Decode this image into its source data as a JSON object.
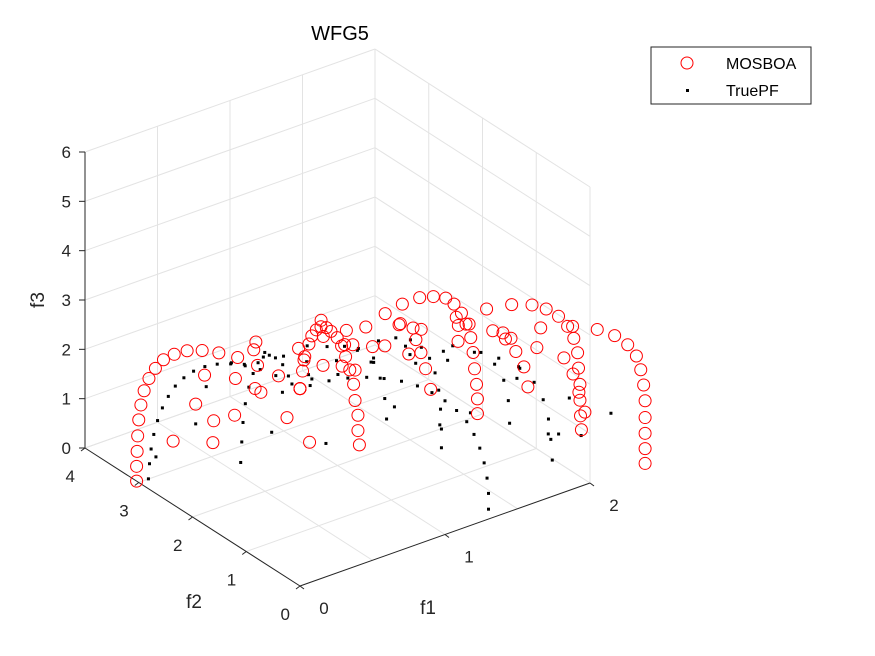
{
  "chart_data": {
    "type": "scatter3d",
    "title": "WFG5",
    "xlabel": "f1",
    "ylabel": "f2",
    "zlabel": "f3",
    "xlim": [
      0,
      2
    ],
    "ylim": [
      0,
      4
    ],
    "zlim": [
      0,
      6
    ],
    "xticks": [
      "0",
      "1",
      "2"
    ],
    "yticks": [
      "0",
      "1",
      "2",
      "3",
      "4"
    ],
    "zticks": [
      "0",
      "1",
      "2",
      "3",
      "4",
      "5",
      "6"
    ],
    "grid": true,
    "legend_location": "top-right",
    "series": [
      {
        "name": "MOSBOA",
        "marker": "open-circle",
        "color": "#ff0000",
        "points": [
          [
            0.0,
            0.0,
            4.0
          ],
          [
            0.14,
            0.33,
            3.98
          ],
          [
            0.27,
            0.64,
            3.92
          ],
          [
            0.41,
            0.94,
            3.82
          ],
          [
            0.53,
            1.21,
            3.67
          ],
          [
            0.65,
            1.45,
            3.5
          ],
          [
            0.76,
            1.66,
            3.3
          ],
          [
            0.86,
            1.83,
            3.06
          ],
          [
            0.94,
            1.96,
            2.81
          ],
          [
            1.02,
            2.06,
            2.53
          ],
          [
            1.08,
            2.14,
            2.24
          ],
          [
            1.13,
            2.2,
            1.93
          ],
          [
            1.17,
            2.23,
            1.6
          ],
          [
            1.2,
            2.24,
            1.27
          ],
          [
            1.21,
            2.24,
            0.93
          ],
          [
            1.23,
            2.24,
            0.61
          ],
          [
            1.23,
            2.24,
            0.3
          ],
          [
            1.24,
            2.24,
            0.0
          ],
          [
            0.0,
            0.0,
            4.0
          ],
          [
            0.27,
            0.3,
            3.98
          ],
          [
            0.53,
            0.6,
            3.92
          ],
          [
            0.78,
            0.88,
            3.82
          ],
          [
            1.01,
            1.14,
            3.67
          ],
          [
            1.21,
            1.36,
            3.5
          ],
          [
            1.4,
            1.55,
            3.3
          ],
          [
            1.55,
            1.7,
            3.06
          ],
          [
            1.68,
            1.82,
            2.81
          ],
          [
            1.77,
            1.91,
            2.53
          ],
          [
            1.84,
            1.96,
            2.24
          ],
          [
            1.89,
            2.01,
            1.93
          ],
          [
            1.93,
            2.03,
            1.6
          ],
          [
            1.95,
            2.04,
            1.27
          ],
          [
            1.96,
            2.04,
            0.93
          ],
          [
            1.97,
            2.03,
            0.61
          ],
          [
            1.98,
            2.04,
            0.3
          ],
          [
            1.98,
            2.04,
            0.0
          ],
          [
            0.0,
            0.0,
            4.0
          ],
          [
            0.35,
            0.16,
            3.98
          ],
          [
            0.7,
            0.31,
            3.92
          ],
          [
            1.01,
            0.47,
            3.82
          ],
          [
            1.3,
            0.6,
            3.67
          ],
          [
            1.55,
            0.71,
            3.5
          ],
          [
            1.76,
            0.81,
            3.3
          ],
          [
            1.93,
            0.89,
            3.06
          ],
          [
            2.05,
            0.95,
            2.81
          ],
          [
            2.15,
            0.99,
            2.53
          ],
          [
            2.22,
            1.01,
            2.24
          ],
          [
            2.27,
            1.03,
            1.93
          ],
          [
            2.3,
            1.04,
            1.6
          ],
          [
            2.31,
            1.05,
            1.27
          ],
          [
            2.32,
            1.05,
            0.93
          ],
          [
            2.32,
            1.05,
            0.61
          ],
          [
            2.32,
            1.04,
            0.3
          ],
          [
            2.33,
            1.05,
            0.0
          ],
          [
            0.0,
            0.0,
            4.0
          ],
          [
            0.38,
            0.0,
            3.98
          ],
          [
            0.75,
            0.0,
            3.92
          ],
          [
            1.09,
            0.0,
            3.82
          ],
          [
            1.4,
            0.0,
            3.67
          ],
          [
            1.66,
            0.0,
            3.5
          ],
          [
            1.88,
            0.0,
            3.3
          ],
          [
            2.05,
            0.0,
            3.06
          ],
          [
            2.17,
            0.0,
            2.81
          ],
          [
            2.26,
            0.0,
            2.53
          ],
          [
            2.32,
            0.0,
            2.24
          ],
          [
            2.35,
            0.0,
            1.93
          ],
          [
            2.37,
            0.0,
            1.6
          ],
          [
            2.38,
            0.0,
            1.27
          ],
          [
            2.38,
            0.0,
            0.93
          ],
          [
            2.38,
            0.0,
            0.61
          ],
          [
            2.38,
            0.0,
            0.3
          ],
          [
            2.38,
            0.0,
            0.0
          ],
          [
            0.0,
            0.4,
            3.98
          ],
          [
            0.0,
            0.79,
            3.92
          ],
          [
            0.0,
            1.16,
            3.82
          ],
          [
            0.0,
            1.51,
            3.67
          ],
          [
            0.0,
            1.82,
            3.5
          ],
          [
            0.0,
            2.1,
            3.3
          ],
          [
            0.0,
            2.34,
            3.06
          ],
          [
            0.0,
            2.54,
            2.81
          ],
          [
            0.0,
            2.69,
            2.53
          ],
          [
            0.0,
            2.81,
            2.24
          ],
          [
            0.0,
            2.9,
            1.93
          ],
          [
            0.0,
            2.96,
            1.6
          ],
          [
            0.0,
            3.0,
            1.27
          ],
          [
            0.0,
            3.02,
            0.93
          ],
          [
            0.0,
            3.03,
            0.61
          ],
          [
            0.0,
            3.04,
            0.3
          ],
          [
            0.0,
            3.04,
            0.0
          ],
          [
            0.63,
            0.35,
            3.95
          ],
          [
            0.95,
            0.72,
            3.8
          ],
          [
            1.27,
            0.48,
            3.62
          ],
          [
            1.1,
            1.1,
            3.4
          ],
          [
            1.47,
            0.82,
            3.2
          ],
          [
            1.58,
            0.44,
            3.05
          ],
          [
            1.28,
            1.35,
            2.95
          ],
          [
            1.7,
            1.0,
            2.7
          ],
          [
            1.83,
            0.53,
            2.55
          ],
          [
            1.4,
            1.62,
            2.4
          ],
          [
            1.9,
            1.2,
            2.2
          ],
          [
            2.05,
            0.62,
            2.05
          ],
          [
            1.52,
            1.85,
            1.85
          ],
          [
            2.0,
            1.38,
            1.7
          ],
          [
            2.15,
            0.72,
            1.55
          ],
          [
            1.6,
            1.98,
            1.35
          ],
          [
            2.1,
            1.5,
            1.2
          ],
          [
            2.22,
            0.8,
            1.05
          ],
          [
            1.65,
            2.02,
            0.85
          ],
          [
            2.15,
            1.56,
            0.7
          ],
          [
            2.28,
            0.85,
            0.55
          ],
          [
            0.72,
            1.55,
            3.55
          ],
          [
            0.95,
            1.7,
            3.0
          ],
          [
            1.05,
            1.85,
            2.5
          ],
          [
            0.45,
            2.05,
            2.1
          ],
          [
            0.62,
            2.4,
            1.6
          ],
          [
            0.35,
            2.55,
            1.2
          ],
          [
            0.8,
            2.4,
            0.9
          ],
          [
            0.4,
            2.7,
            0.6
          ],
          [
            0.9,
            2.25,
            0.4
          ],
          [
            0.25,
            0.6,
            3.9
          ],
          [
            0.55,
            1.05,
            3.75
          ],
          [
            0.2,
            1.4,
            3.6
          ],
          [
            0.4,
            1.9,
            3.2
          ],
          [
            0.75,
            2.05,
            2.6
          ],
          [
            0.25,
            2.45,
            2.3
          ],
          [
            0.5,
            2.55,
            1.9
          ],
          [
            0.3,
            2.75,
            1.45
          ],
          [
            0.55,
            2.7,
            1.0
          ],
          [
            0.2,
            2.9,
            0.7
          ]
        ]
      },
      {
        "name": "TruePF",
        "marker": "dot",
        "color": "#000000",
        "points": [
          [
            0.07,
            0.0,
            3.99
          ],
          [
            0.2,
            0.0,
            3.95
          ],
          [
            0.33,
            0.0,
            3.87
          ],
          [
            0.46,
            0.0,
            3.75
          ],
          [
            0.58,
            0.0,
            3.6
          ],
          [
            0.7,
            0.0,
            3.42
          ],
          [
            0.81,
            0.0,
            3.21
          ],
          [
            0.91,
            0.0,
            2.97
          ],
          [
            1.0,
            0.0,
            2.71
          ],
          [
            1.08,
            0.0,
            2.43
          ],
          [
            1.15,
            0.0,
            2.13
          ],
          [
            1.2,
            0.0,
            1.82
          ],
          [
            1.24,
            0.0,
            1.5
          ],
          [
            1.27,
            0.0,
            1.17
          ],
          [
            1.29,
            0.0,
            0.84
          ],
          [
            1.3,
            0.0,
            0.52
          ],
          [
            1.3,
            0.0,
            0.2
          ],
          [
            0.0,
            0.15,
            3.99
          ],
          [
            0.0,
            0.45,
            3.95
          ],
          [
            0.0,
            0.74,
            3.87
          ],
          [
            0.0,
            1.02,
            3.75
          ],
          [
            0.0,
            1.29,
            3.6
          ],
          [
            0.0,
            1.54,
            3.42
          ],
          [
            0.0,
            1.77,
            3.21
          ],
          [
            0.0,
            1.98,
            2.97
          ],
          [
            0.0,
            2.16,
            2.71
          ],
          [
            0.0,
            2.32,
            2.43
          ],
          [
            0.0,
            2.45,
            2.13
          ],
          [
            0.0,
            2.56,
            1.82
          ],
          [
            0.0,
            2.65,
            1.5
          ],
          [
            0.0,
            2.72,
            1.17
          ],
          [
            0.0,
            2.77,
            0.84
          ],
          [
            0.0,
            2.8,
            0.52
          ],
          [
            0.0,
            2.82,
            0.2
          ],
          [
            0.13,
            0.13,
            3.97
          ],
          [
            0.4,
            0.4,
            3.87
          ],
          [
            0.64,
            0.64,
            3.7
          ],
          [
            0.86,
            0.86,
            3.47
          ],
          [
            1.05,
            1.05,
            3.2
          ],
          [
            1.21,
            1.21,
            2.88
          ],
          [
            1.33,
            1.33,
            2.52
          ],
          [
            1.42,
            1.42,
            2.14
          ],
          [
            1.48,
            1.48,
            1.74
          ],
          [
            1.52,
            1.52,
            1.32
          ],
          [
            1.54,
            1.54,
            0.9
          ],
          [
            1.55,
            1.55,
            0.48
          ],
          [
            1.55,
            1.55,
            0.1
          ],
          [
            0.28,
            0.05,
            3.96
          ],
          [
            0.56,
            0.14,
            3.85
          ],
          [
            0.84,
            0.22,
            3.66
          ],
          [
            1.1,
            0.3,
            3.4
          ],
          [
            1.34,
            0.37,
            3.08
          ],
          [
            1.53,
            0.43,
            2.72
          ],
          [
            1.69,
            0.47,
            2.32
          ],
          [
            1.8,
            0.5,
            1.9
          ],
          [
            1.87,
            0.52,
            1.46
          ],
          [
            1.91,
            0.53,
            1.02
          ],
          [
            1.93,
            0.54,
            0.58
          ],
          [
            1.94,
            0.54,
            0.15
          ],
          [
            0.05,
            0.35,
            3.96
          ],
          [
            0.14,
            0.7,
            3.85
          ],
          [
            0.22,
            1.05,
            3.66
          ],
          [
            0.3,
            1.38,
            3.4
          ],
          [
            0.37,
            1.68,
            3.08
          ],
          [
            0.43,
            1.94,
            2.72
          ],
          [
            0.47,
            2.14,
            2.32
          ],
          [
            0.5,
            2.3,
            1.9
          ],
          [
            0.52,
            2.42,
            1.46
          ],
          [
            0.53,
            2.49,
            1.02
          ],
          [
            0.54,
            2.54,
            0.58
          ],
          [
            0.54,
            2.56,
            0.15
          ],
          [
            0.22,
            0.9,
            3.8
          ],
          [
            0.35,
            1.6,
            3.25
          ],
          [
            0.65,
            1.25,
            3.3
          ],
          [
            0.9,
            1.6,
            2.8
          ],
          [
            1.1,
            1.9,
            2.3
          ],
          [
            1.25,
            2.05,
            1.8
          ],
          [
            1.35,
            2.15,
            1.3
          ],
          [
            1.4,
            2.2,
            0.8
          ],
          [
            1.42,
            2.22,
            0.35
          ],
          [
            0.95,
            0.6,
            3.45
          ],
          [
            1.35,
            0.8,
            2.9
          ],
          [
            1.6,
            0.95,
            2.4
          ],
          [
            1.75,
            1.1,
            1.9
          ],
          [
            1.85,
            1.2,
            1.4
          ],
          [
            1.9,
            1.25,
            0.9
          ],
          [
            1.92,
            1.28,
            0.4
          ],
          [
            0.6,
            0.25,
            3.82
          ],
          [
            0.25,
            0.55,
            3.9
          ],
          [
            1.6,
            0.25,
            2.6
          ],
          [
            1.95,
            0.25,
            1.6
          ],
          [
            2.05,
            0.3,
            0.7
          ],
          [
            0.25,
            1.95,
            2.9
          ],
          [
            0.28,
            2.5,
            2.0
          ],
          [
            0.3,
            2.75,
            1.05
          ],
          [
            0.75,
            2.35,
            1.5
          ],
          [
            0.75,
            2.55,
            0.55
          ],
          [
            1.75,
            1.55,
            0.6
          ],
          [
            1.7,
            0.55,
            2.05
          ],
          [
            2.08,
            0.8,
            0.35
          ],
          [
            2.12,
            1.1,
            0.1
          ],
          [
            1.05,
            2.35,
            0.15
          ],
          [
            1.3,
            1.75,
            1.05
          ],
          [
            1.15,
            0.95,
            2.65
          ],
          [
            0.55,
            1.35,
            3.35
          ],
          [
            0.8,
            2.0,
            2.05
          ],
          [
            1.5,
            1.3,
            2.1
          ],
          [
            1.65,
            1.85,
            0.25
          ],
          [
            0.45,
            2.25,
            2.45
          ],
          [
            2.2,
            0.15,
            1.1
          ],
          [
            0.1,
            2.95,
            0.45
          ]
        ]
      }
    ]
  }
}
